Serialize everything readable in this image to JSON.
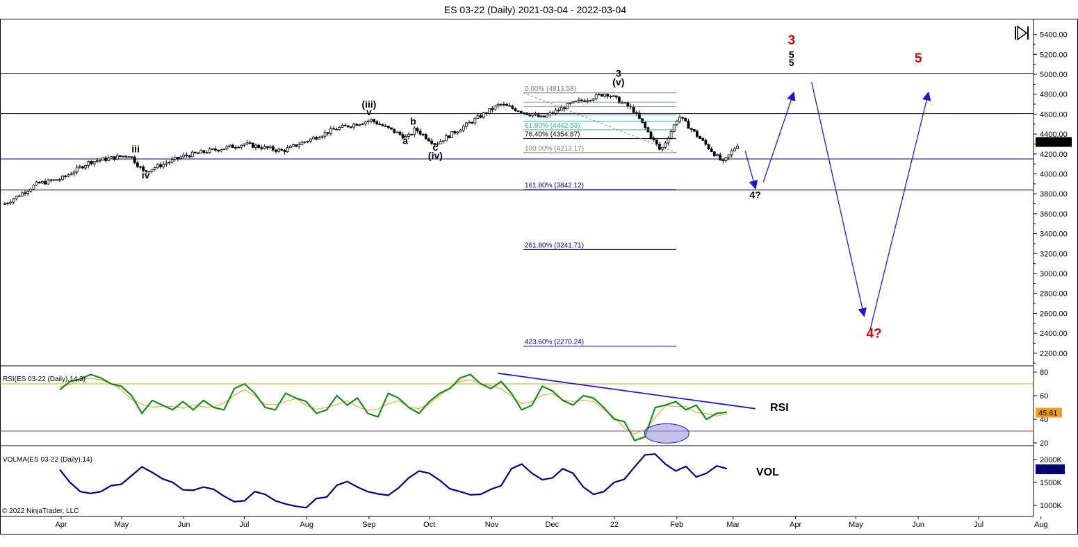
{
  "chart_title": "ES 03-22 (Daily)  2021-03-04 - 2022-03-04",
  "copyright": "© 2022 NinjaTrader, LLC",
  "colors": {
    "candle_up": "#ffffff",
    "candle_down": "#000000",
    "h_lines": "#000080",
    "fib_gray": "#808080",
    "fib_teal": "#3fa8a8",
    "fib_blue": "#000080",
    "arrow_blue": "#1a1acc",
    "red_label": "#e00000",
    "rsi_line": "#1a8a1a",
    "rsi_signal": "#e0a020",
    "rsi_upper": "#b0b030",
    "rsi_lower": "#a03090",
    "vol_line": "#000080",
    "price_badge": "#000000",
    "rsi_badge": "#f0a020",
    "vol_badge": "#000080"
  },
  "chart_data": {
    "type": "candlestick",
    "title": "ES 03-22 (Daily)  2021-03-04 - 2022-03-04",
    "x_tick_labels": [
      "Apr",
      "May",
      "Jun",
      "Jul",
      "Aug",
      "Sep",
      "Oct",
      "Nov",
      "Dec",
      "22",
      "Feb",
      "Mar",
      "Apr",
      "May",
      "Jun",
      "Jul",
      "Aug"
    ],
    "price_axis": {
      "ylim": [
        2050,
        5550
      ],
      "ticks": [
        2200,
        2400,
        2600,
        2800,
        3000,
        3200,
        3400,
        3600,
        3800,
        4000,
        4200,
        4400,
        4600,
        4800,
        5000,
        5200,
        5400
      ],
      "tick_labels": [
        "2200.00",
        "2400.00",
        "2600.00",
        "2800.00",
        "3000.00",
        "3200.00",
        "3400.00",
        "3600.00",
        "3800.00",
        "4000.00",
        "4200.00",
        "4400.00",
        "4600.00",
        "4800.00",
        "5000.00",
        "5200.00",
        "5400.00"
      ],
      "last_price": 4320.25,
      "last_price_label": "4320.25"
    },
    "price_path_approx": [
      [
        "2021-03-04",
        3700
      ],
      [
        "2021-03-20",
        3900
      ],
      [
        "2021-04-01",
        3950
      ],
      [
        "2021-04-15",
        4120
      ],
      [
        "2021-05-05",
        4190
      ],
      [
        "2021-05-12",
        4020
      ],
      [
        "2021-06-01",
        4180
      ],
      [
        "2021-07-01",
        4300
      ],
      [
        "2021-07-20",
        4230
      ],
      [
        "2021-08-15",
        4450
      ],
      [
        "2021-09-02",
        4540
      ],
      [
        "2021-09-20",
        4360
      ],
      [
        "2021-09-24",
        4450
      ],
      [
        "2021-10-04",
        4300
      ],
      [
        "2021-11-05",
        4700
      ],
      [
        "2021-11-26",
        4560
      ],
      [
        "2021-12-10",
        4700
      ],
      [
        "2021-12-28",
        4810
      ],
      [
        "2022-01-10",
        4650
      ],
      [
        "2022-01-24",
        4230
      ],
      [
        "2022-02-02",
        4580
      ],
      [
        "2022-02-24",
        4110
      ],
      [
        "2022-03-04",
        4320
      ]
    ],
    "horizontal_lines": [
      5010,
      4605,
      4150,
      3838
    ],
    "fib_levels": [
      {
        "label": "0.00% (4813.58)",
        "value": 4813.58
      },
      {
        "label": "61.80% (4442.53)",
        "value": 4442.53
      },
      {
        "label": "76.40% (4354.87)",
        "value": 4354.87
      },
      {
        "label": "100.00% (4213.17)",
        "value": 4213.17
      },
      {
        "label": "161.80% (3842.12)",
        "value": 3842.12
      },
      {
        "label": "261.80% (3241.71)",
        "value": 3241.71
      },
      {
        "label": "423.60% (2270.24)",
        "value": 2270.24
      }
    ],
    "wave_labels": [
      {
        "text": "iii",
        "date": "2021-05-08",
        "price": 4215
      },
      {
        "text": "iv",
        "date": "2021-05-13",
        "price": 3955
      },
      {
        "text": "(iii)",
        "date": "2021-09-01",
        "price": 4665
      },
      {
        "text": "v",
        "date": "2021-09-01",
        "price": 4590
      },
      {
        "text": "b",
        "date": "2021-09-23",
        "price": 4495
      },
      {
        "text": "a",
        "date": "2021-09-19",
        "price": 4300
      },
      {
        "text": "c",
        "date": "2021-10-04",
        "price": 4235
      },
      {
        "text": "(iv)",
        "date": "2021-10-04",
        "price": 4150
      },
      {
        "text": "3",
        "date": "2022-01-03",
        "price": 4975
      },
      {
        "text": "(v)",
        "date": "2022-01-03",
        "price": 4890
      },
      {
        "text": "4?",
        "date": "2022-03-12",
        "price": 3755
      },
      {
        "text": "5",
        "date": "2022-03-30",
        "price": 5165
      },
      {
        "text": "5",
        "date": "2022-03-30",
        "price": 5085
      }
    ],
    "red_labels": [
      {
        "text": "3",
        "date": "2022-03-30",
        "price": 5300
      },
      {
        "text": "5",
        "date": "2022-06-01",
        "price": 5120
      },
      {
        "text": "4?",
        "date": "2022-05-10",
        "price": 2355
      }
    ],
    "rsi": {
      "label": "RSI(ES 03-22 (Daily),14,3)",
      "annotation": "RSI",
      "ticks": [
        20,
        40,
        60,
        80
      ],
      "overbought": 70,
      "oversold": 30,
      "last": 45.61,
      "last_label": "45.61",
      "series": [
        65,
        72,
        74,
        78,
        75,
        70,
        68,
        60,
        45,
        56,
        52,
        48,
        55,
        48,
        56,
        50,
        48,
        66,
        70,
        62,
        50,
        48,
        62,
        58,
        55,
        45,
        48,
        60,
        52,
        58,
        45,
        42,
        62,
        58,
        50,
        45,
        55,
        62,
        66,
        75,
        78,
        70,
        66,
        72,
        62,
        48,
        52,
        68,
        64,
        56,
        52,
        60,
        58,
        50,
        40,
        38,
        22,
        25,
        50,
        52,
        55,
        48,
        52,
        40,
        45,
        46
      ]
    },
    "volma": {
      "label": "VOLMA(ES 03-22 (Daily),14)",
      "annotation": "VOL",
      "ticks": [
        "1000K",
        "1500K",
        "2000K"
      ],
      "last_label": "1787K",
      "series": [
        1780,
        1500,
        1300,
        1260,
        1300,
        1430,
        1460,
        1650,
        1840,
        1720,
        1580,
        1500,
        1340,
        1330,
        1400,
        1350,
        1200,
        1080,
        1100,
        1300,
        1240,
        1100,
        1030,
        980,
        950,
        1150,
        1180,
        1440,
        1520,
        1400,
        1300,
        1250,
        1220,
        1380,
        1600,
        1750,
        1700,
        1550,
        1360,
        1300,
        1230,
        1240,
        1350,
        1430,
        1800,
        1900,
        1700,
        1560,
        1600,
        1800,
        1700,
        1400,
        1240,
        1300,
        1500,
        1570,
        1840,
        2100,
        2120,
        1900,
        1750,
        1850,
        1620,
        1700,
        1860,
        1800
      ]
    }
  }
}
